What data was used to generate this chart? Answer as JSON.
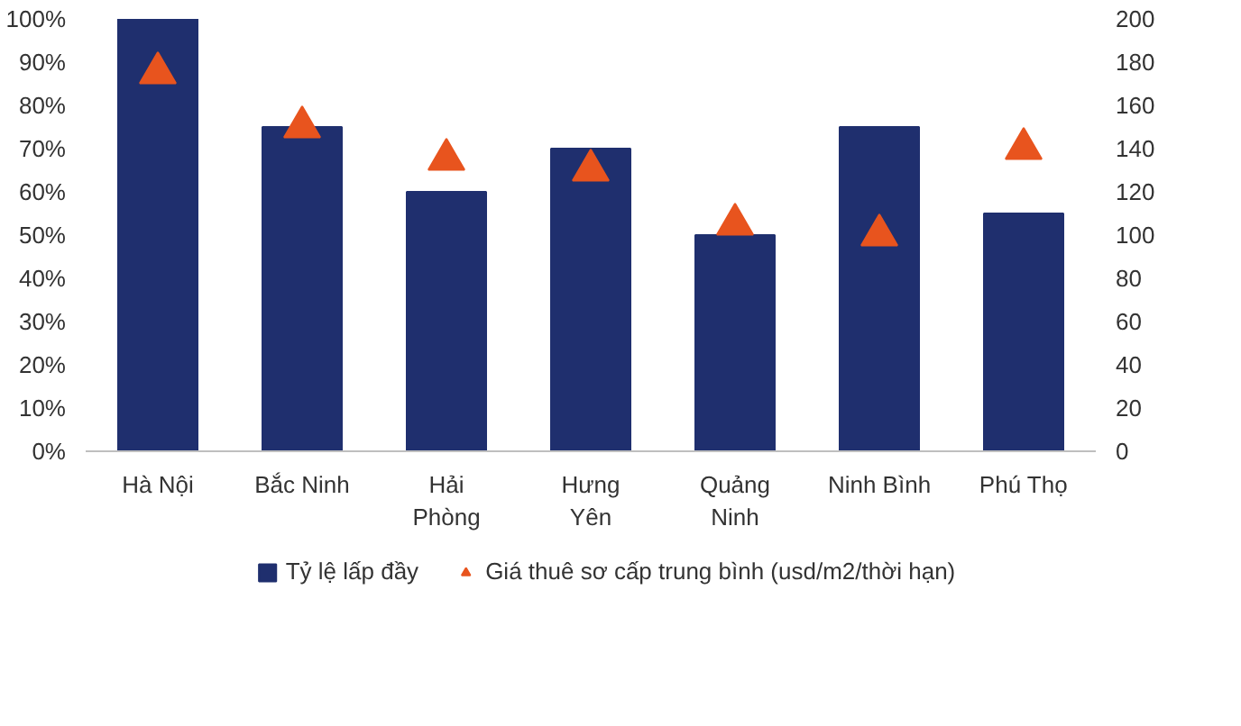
{
  "chart_data": {
    "type": "bar",
    "categories": [
      "Hà Nội",
      "Bắc Ninh",
      "Hải\nPhòng",
      "Hưng\nYên",
      "Quảng\nNinh",
      "Ninh Bình",
      "Phú Thọ"
    ],
    "series": [
      {
        "name": "Tỷ lệ lấp đầy",
        "color": "#1f2f6e",
        "values": [
          100,
          75,
          60,
          70,
          50,
          75,
          55
        ]
      },
      {
        "name": "Giá thuê sơ cấp trung bình (usd/m2/thời hạn)",
        "type": "scatter",
        "marker": "triangle",
        "axis": "y2",
        "color": "#e8541e",
        "values": [
          175,
          150,
          135,
          130,
          105,
          100,
          140
        ]
      }
    ],
    "ylim": [
      0,
      100
    ],
    "yticks": [
      {
        "value": 0,
        "label": "0%"
      },
      {
        "value": 10,
        "label": "10%"
      },
      {
        "value": 20,
        "label": "20%"
      },
      {
        "value": 30,
        "label": "30%"
      },
      {
        "value": 40,
        "label": "40%"
      },
      {
        "value": 50,
        "label": "50%"
      },
      {
        "value": 60,
        "label": "60%"
      },
      {
        "value": 70,
        "label": "70%"
      },
      {
        "value": 80,
        "label": "80%"
      },
      {
        "value": 90,
        "label": "90%"
      },
      {
        "value": 100,
        "label": "100%"
      }
    ],
    "y2lim": [
      0,
      200
    ],
    "y2ticks": [
      0,
      20,
      40,
      60,
      80,
      100,
      120,
      140,
      160,
      180,
      200
    ],
    "grid": false,
    "legend": "bottom"
  }
}
